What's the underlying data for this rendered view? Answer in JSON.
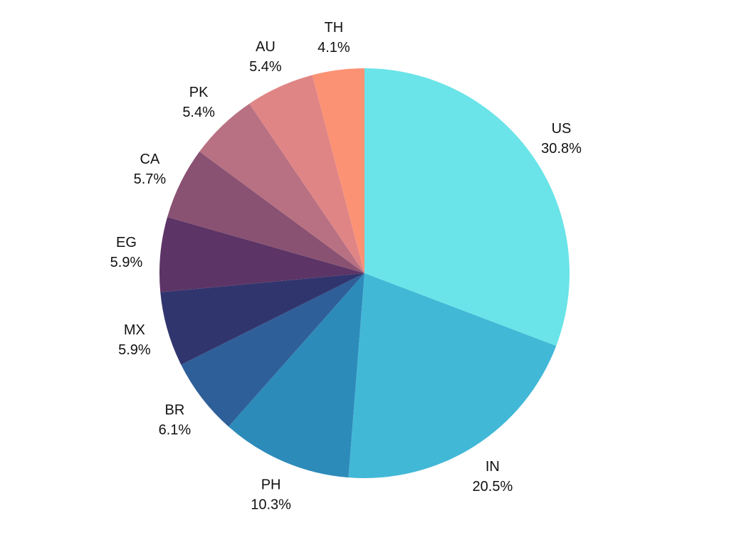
{
  "chart_data": {
    "type": "pie",
    "title": "",
    "start": "top",
    "direction": "clockwise",
    "legend": "none",
    "slices": [
      {
        "label": "US",
        "value": 30.8,
        "display": "30.8%",
        "color": "#6ae4e8"
      },
      {
        "label": "IN",
        "value": 20.5,
        "display": "20.5%",
        "color": "#42b8d7"
      },
      {
        "label": "PH",
        "value": 10.3,
        "display": "10.3%",
        "color": "#2d8bba"
      },
      {
        "label": "BR",
        "value": 6.1,
        "display": "6.1%",
        "color": "#2f5f98"
      },
      {
        "label": "MX",
        "value": 5.9,
        "display": "5.9%",
        "color": "#31356e"
      },
      {
        "label": "EG",
        "value": 5.9,
        "display": "5.9%",
        "color": "#5c3566"
      },
      {
        "label": "CA",
        "value": 5.7,
        "display": "5.7%",
        "color": "#8a5272"
      },
      {
        "label": "PK",
        "value": 5.4,
        "display": "5.4%",
        "color": "#b87182"
      },
      {
        "label": "AU",
        "value": 5.4,
        "display": "5.4%",
        "color": "#e08585"
      },
      {
        "label": "TH",
        "value": 4.1,
        "display": "4.1%",
        "color": "#fb9274"
      }
    ]
  }
}
